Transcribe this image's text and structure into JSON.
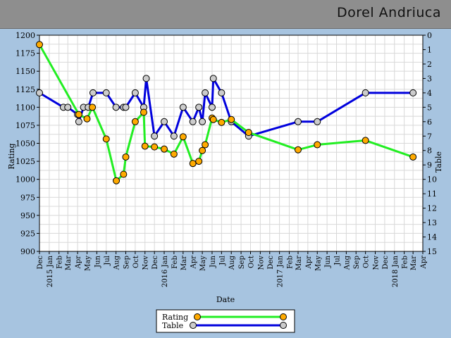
{
  "header": {
    "player_name": "Dorel Andriuca"
  },
  "chart_data": {
    "type": "line",
    "xlabel": "Date",
    "ylabel_left": "Rating",
    "ylabel_right": "Table",
    "ylim_left": [
      900,
      1200
    ],
    "ylim_right": [
      15,
      0
    ],
    "yticks_left": [
      900,
      925,
      950,
      975,
      1000,
      1025,
      1050,
      1075,
      1100,
      1125,
      1150,
      1175,
      1200
    ],
    "yticks_right": [
      0,
      1,
      2,
      3,
      4,
      5,
      6,
      7,
      8,
      9,
      10,
      11,
      12,
      13,
      14,
      15
    ],
    "xlim": [
      "2014-12-01",
      "2018-04-01"
    ],
    "x_tick_labels": [
      {
        "date": "2014-12-01",
        "label": "Dec"
      },
      {
        "date": "2015-01-01",
        "label": "2015 Jan"
      },
      {
        "date": "2015-02-01",
        "label": "Feb"
      },
      {
        "date": "2015-03-01",
        "label": "Mar"
      },
      {
        "date": "2015-04-01",
        "label": "Apr"
      },
      {
        "date": "2015-05-01",
        "label": "May"
      },
      {
        "date": "2015-06-01",
        "label": "Jun"
      },
      {
        "date": "2015-07-01",
        "label": "Jul"
      },
      {
        "date": "2015-08-01",
        "label": "Aug"
      },
      {
        "date": "2015-09-01",
        "label": "Sep"
      },
      {
        "date": "2015-10-01",
        "label": "Oct"
      },
      {
        "date": "2015-11-01",
        "label": "Nov"
      },
      {
        "date": "2015-12-01",
        "label": "Dec"
      },
      {
        "date": "2016-01-01",
        "label": "2016 Jan"
      },
      {
        "date": "2016-02-01",
        "label": "Feb"
      },
      {
        "date": "2016-03-01",
        "label": "Mar"
      },
      {
        "date": "2016-04-01",
        "label": "Apr"
      },
      {
        "date": "2016-05-01",
        "label": "May"
      },
      {
        "date": "2016-06-01",
        "label": "Jun"
      },
      {
        "date": "2016-07-01",
        "label": "Jul"
      },
      {
        "date": "2016-08-01",
        "label": "Aug"
      },
      {
        "date": "2016-09-01",
        "label": "Sep"
      },
      {
        "date": "2016-10-01",
        "label": "Oct"
      },
      {
        "date": "2016-11-01",
        "label": "Nov"
      },
      {
        "date": "2016-12-01",
        "label": "Dec"
      },
      {
        "date": "2017-01-01",
        "label": "2017 Jan"
      },
      {
        "date": "2017-02-01",
        "label": "Feb"
      },
      {
        "date": "2017-03-01",
        "label": "Mar"
      },
      {
        "date": "2017-04-01",
        "label": "Apr"
      },
      {
        "date": "2017-05-01",
        "label": "May"
      },
      {
        "date": "2017-06-01",
        "label": "Jun"
      },
      {
        "date": "2017-07-01",
        "label": "Jul"
      },
      {
        "date": "2017-08-01",
        "label": "Aug"
      },
      {
        "date": "2017-09-01",
        "label": "Sep"
      },
      {
        "date": "2017-10-01",
        "label": "Oct"
      },
      {
        "date": "2017-11-01",
        "label": "Nov"
      },
      {
        "date": "2017-12-01",
        "label": "Dec"
      },
      {
        "date": "2018-01-01",
        "label": "2018 Jan"
      },
      {
        "date": "2018-02-01",
        "label": "Feb"
      },
      {
        "date": "2018-03-01",
        "label": "Mar"
      },
      {
        "date": "2018-04-01",
        "label": "Apr"
      }
    ],
    "grid": true,
    "legend_position": "bottom-center",
    "series": [
      {
        "name": "Rating",
        "axis": "left",
        "color": "#22ee22",
        "marker_color": "#ffaa00",
        "points": [
          {
            "x": "2014-12-01",
            "y": 1187
          },
          {
            "x": "2015-04-05",
            "y": 1090
          },
          {
            "x": "2015-05-01",
            "y": 1084
          },
          {
            "x": "2015-05-18",
            "y": 1100
          },
          {
            "x": "2015-07-01",
            "y": 1056
          },
          {
            "x": "2015-08-02",
            "y": 998
          },
          {
            "x": "2015-08-25",
            "y": 1007
          },
          {
            "x": "2015-09-01",
            "y": 1031
          },
          {
            "x": "2015-10-01",
            "y": 1080
          },
          {
            "x": "2015-10-28",
            "y": 1093
          },
          {
            "x": "2015-11-01",
            "y": 1046
          },
          {
            "x": "2015-12-01",
            "y": 1045
          },
          {
            "x": "2016-01-01",
            "y": 1042
          },
          {
            "x": "2016-02-01",
            "y": 1035
          },
          {
            "x": "2016-03-01",
            "y": 1059
          },
          {
            "x": "2016-04-01",
            "y": 1022
          },
          {
            "x": "2016-04-20",
            "y": 1025
          },
          {
            "x": "2016-05-01",
            "y": 1040
          },
          {
            "x": "2016-05-10",
            "y": 1048
          },
          {
            "x": "2016-06-01",
            "y": 1085
          },
          {
            "x": "2016-06-05",
            "y": 1083
          },
          {
            "x": "2016-07-01",
            "y": 1079
          },
          {
            "x": "2016-08-01",
            "y": 1083
          },
          {
            "x": "2016-09-25",
            "y": 1065
          },
          {
            "x": "2017-03-01",
            "y": 1041
          },
          {
            "x": "2017-05-01",
            "y": 1048
          },
          {
            "x": "2017-10-01",
            "y": 1054
          },
          {
            "x": "2018-03-01",
            "y": 1031
          }
        ]
      },
      {
        "name": "Table",
        "axis": "right",
        "color": "#0000dd",
        "marker_color": "#cccccc",
        "points": [
          {
            "x": "2014-12-01",
            "y": 4
          },
          {
            "x": "2015-02-15",
            "y": 5
          },
          {
            "x": "2015-03-01",
            "y": 5
          },
          {
            "x": "2015-04-01",
            "y": 5.5
          },
          {
            "x": "2015-04-05",
            "y": 6
          },
          {
            "x": "2015-04-20",
            "y": 5
          },
          {
            "x": "2015-05-05",
            "y": 5
          },
          {
            "x": "2015-05-20",
            "y": 4
          },
          {
            "x": "2015-07-01",
            "y": 4
          },
          {
            "x": "2015-08-01",
            "y": 5
          },
          {
            "x": "2015-08-25",
            "y": 5
          },
          {
            "x": "2015-09-01",
            "y": 5
          },
          {
            "x": "2015-10-01",
            "y": 4
          },
          {
            "x": "2015-10-28",
            "y": 5
          },
          {
            "x": "2015-11-05",
            "y": 3
          },
          {
            "x": "2015-12-01",
            "y": 7
          },
          {
            "x": "2016-01-01",
            "y": 6
          },
          {
            "x": "2016-02-01",
            "y": 7
          },
          {
            "x": "2016-03-01",
            "y": 5
          },
          {
            "x": "2016-04-01",
            "y": 6
          },
          {
            "x": "2016-04-20",
            "y": 5
          },
          {
            "x": "2016-05-01",
            "y": 6
          },
          {
            "x": "2016-05-10",
            "y": 4
          },
          {
            "x": "2016-06-01",
            "y": 5
          },
          {
            "x": "2016-06-05",
            "y": 3
          },
          {
            "x": "2016-07-01",
            "y": 4
          },
          {
            "x": "2016-08-01",
            "y": 6
          },
          {
            "x": "2016-09-25",
            "y": 7
          },
          {
            "x": "2017-03-01",
            "y": 6
          },
          {
            "x": "2017-05-01",
            "y": 6
          },
          {
            "x": "2017-10-01",
            "y": 4
          },
          {
            "x": "2018-03-01",
            "y": 4
          }
        ]
      }
    ]
  },
  "legend": {
    "rating_label": "Rating",
    "table_label": "Table"
  }
}
